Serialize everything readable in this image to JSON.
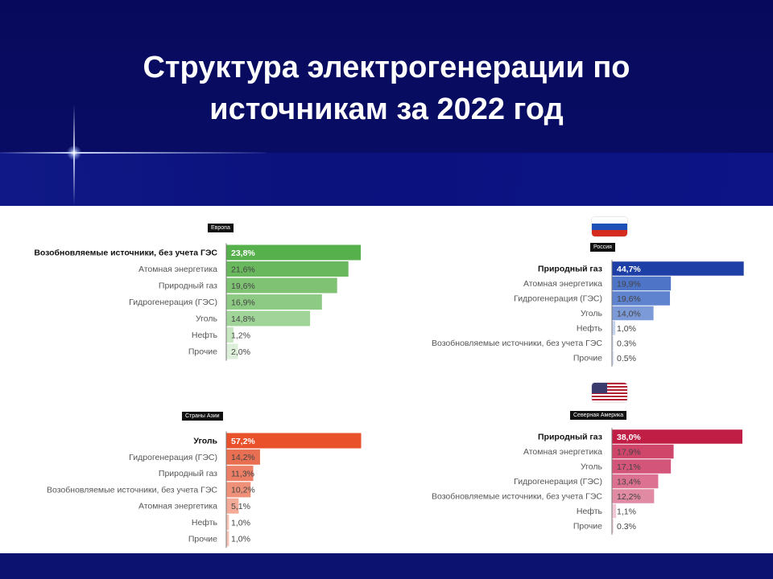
{
  "slide": {
    "title_line1": "Структура электрогенерации по",
    "title_line2": "источникам за 2022 год"
  },
  "chart_data": [
    {
      "type": "bar",
      "region": "Европа",
      "categories": [
        "Возобновляемые источники, без учета ГЭС",
        "Атомная энергетика",
        "Природный газ",
        "Гидрогенерация (ГЭС)",
        "Уголь",
        "Нефть",
        "Прочие"
      ],
      "values": [
        23.8,
        21.6,
        19.6,
        16.9,
        14.8,
        1.2,
        2.0
      ],
      "value_labels": [
        "23,8%",
        "21,6%",
        "19,6%",
        "16,9%",
        "14,8%",
        "1,2%",
        "2,0%"
      ],
      "unit": "%",
      "colors": [
        "#56b04b",
        "#6ab85e",
        "#7fc274",
        "#8dca83",
        "#a1d498",
        "#c8e6c2",
        "#dcefd8"
      ]
    },
    {
      "type": "bar",
      "region": "Россия",
      "categories": [
        "Природный газ",
        "Атомная энергетика",
        "Гидрогенерация (ГЭС)",
        "Уголь",
        "Нефть",
        "Возобновляемые источники, без учета ГЭС",
        "Прочие"
      ],
      "values": [
        44.7,
        19.9,
        19.6,
        14.0,
        1.0,
        0.3,
        0.5
      ],
      "value_labels": [
        "44,7%",
        "19,9%",
        "19,6%",
        "14,0%",
        "1,0%",
        "0.3%",
        "0.5%"
      ],
      "unit": "%",
      "colors": [
        "#1e3fa6",
        "#4e74c8",
        "#5f83cf",
        "#7d9ad8",
        "#c7d3ee",
        "#dfe6f5",
        "#dfe6f5"
      ]
    },
    {
      "type": "bar",
      "region": "Страны Азии",
      "categories": [
        "Уголь",
        "Гидрогенерация (ГЭС)",
        "Природный газ",
        "Возобновляемые источники, без учета ГЭС",
        "Атомная энергетика",
        "Нефть",
        "Прочие"
      ],
      "values": [
        57.2,
        14.2,
        11.3,
        10.2,
        5.1,
        1.0,
        1.0
      ],
      "value_labels": [
        "57,2%",
        "14,2%",
        "11,3%",
        "10,2%",
        "5,1%",
        "1,0%",
        "1,0%"
      ],
      "unit": "%",
      "colors": [
        "#e8512a",
        "#e96f52",
        "#ec7f66",
        "#ef9078",
        "#f3ab98",
        "#f6c3b6",
        "#f6c3b6"
      ]
    },
    {
      "type": "bar",
      "region": "Северная Америка",
      "categories": [
        "Природный газ",
        "Атомная энергетика",
        "Уголь",
        "Гидрогенерация (ГЭС)",
        "Возобновляемые источники, без учета ГЭС",
        "Нефть",
        "Прочие"
      ],
      "values": [
        38.0,
        17.9,
        17.1,
        13.4,
        12.2,
        1.1,
        0.3
      ],
      "value_labels": [
        "38,0%",
        "17,9%",
        "17,1%",
        "13,4%",
        "12,2%",
        "1,1%",
        "0.3%"
      ],
      "unit": "%",
      "colors": [
        "#c01e45",
        "#d0466a",
        "#d4557a",
        "#dc7191",
        "#e08aa4",
        "#f1c8d5",
        "#f5dbe3"
      ]
    }
  ]
}
